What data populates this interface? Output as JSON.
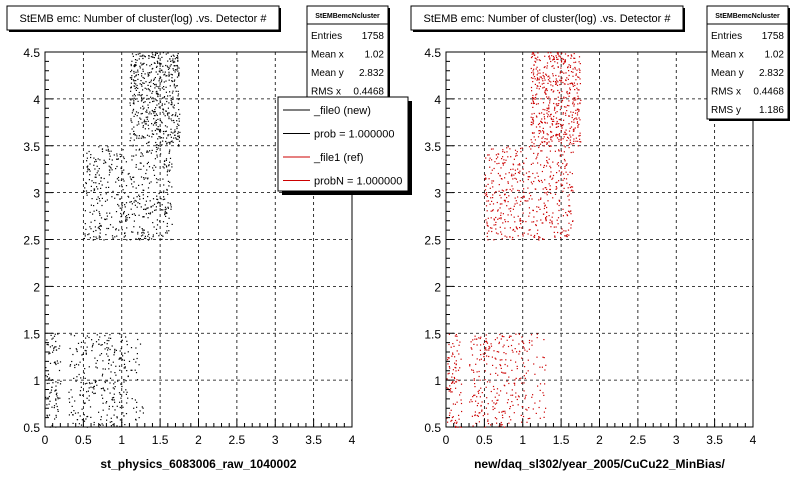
{
  "chart_data": [
    {
      "type": "scatter",
      "title": "StEMB emc: Number of cluster(log) .vs. Detector #",
      "xlabel": "st_physics_6083006_raw_1040002",
      "ylabel": "",
      "xlim": [
        0,
        4
      ],
      "ylim": [
        0.5,
        4.5
      ],
      "x_ticks": [
        "0",
        "0.5",
        "1",
        "1.5",
        "2",
        "2.5",
        "3",
        "3.5",
        "4"
      ],
      "y_ticks": [
        "0.5",
        "1",
        "1.5",
        "2",
        "2.5",
        "3",
        "3.5",
        "4",
        "4.5"
      ],
      "grid": true,
      "marker_color": "#000000",
      "stats": {
        "name": "StEMBemcNcluster",
        "rows": [
          {
            "label": "Entries",
            "value": "1758"
          },
          {
            "label": "Mean x",
            "value": "1.02"
          },
          {
            "label": "Mean y",
            "value": "2.832"
          },
          {
            "label": "RMS x",
            "value": "0.4468"
          }
        ]
      },
      "legend": [
        {
          "label": "_file0 (new)",
          "color": "#000000"
        },
        {
          "label": "prob = 1.000000",
          "color": "#000000"
        },
        {
          "label": "_file1 (ref)",
          "color": "#cc0000"
        },
        {
          "label": "probN = 1.000000",
          "color": "#cc0000"
        }
      ],
      "clusters": [
        {
          "x": [
            0.0,
            0.2
          ],
          "y": [
            0.5,
            1.5
          ],
          "n": 90
        },
        {
          "x": [
            0.3,
            1.05
          ],
          "y": [
            0.5,
            1.5
          ],
          "n": 260
        },
        {
          "x": [
            1.05,
            1.3
          ],
          "y": [
            0.55,
            1.5
          ],
          "n": 40
        },
        {
          "x": [
            0.5,
            1.65
          ],
          "y": [
            2.5,
            3.5
          ],
          "n": 480
        },
        {
          "x": [
            1.1,
            1.75
          ],
          "y": [
            3.5,
            4.5
          ],
          "n": 520
        }
      ]
    },
    {
      "type": "scatter",
      "title": "StEMB emc: Number of cluster(log) .vs. Detector #",
      "xlabel": "new/daq_sl302/year_2005/CuCu22_MinBias/",
      "ylabel": "",
      "xlim": [
        0,
        4
      ],
      "ylim": [
        0.5,
        4.5
      ],
      "x_ticks": [
        "0",
        "0.5",
        "1",
        "1.5",
        "2",
        "2.5",
        "3",
        "3.5",
        "4"
      ],
      "y_ticks": [
        "0.5",
        "1",
        "1.5",
        "2",
        "2.5",
        "3",
        "3.5",
        "4",
        "4.5"
      ],
      "grid": true,
      "marker_color": "#cc0000",
      "stats": {
        "name": "StEMBemcNcluster",
        "rows": [
          {
            "label": "Entries",
            "value": "1758"
          },
          {
            "label": "Mean x",
            "value": "1.02"
          },
          {
            "label": "Mean y",
            "value": "2.832"
          },
          {
            "label": "RMS x",
            "value": "0.4468"
          },
          {
            "label": "RMS y",
            "value": "1.186"
          }
        ]
      },
      "clusters": [
        {
          "x": [
            0.0,
            0.2
          ],
          "y": [
            0.5,
            1.5
          ],
          "n": 90
        },
        {
          "x": [
            0.3,
            1.05
          ],
          "y": [
            0.5,
            1.5
          ],
          "n": 260
        },
        {
          "x": [
            1.05,
            1.3
          ],
          "y": [
            0.55,
            1.5
          ],
          "n": 40
        },
        {
          "x": [
            0.5,
            1.65
          ],
          "y": [
            2.5,
            3.5
          ],
          "n": 480
        },
        {
          "x": [
            1.1,
            1.75
          ],
          "y": [
            3.5,
            4.5
          ],
          "n": 520
        }
      ]
    }
  ]
}
